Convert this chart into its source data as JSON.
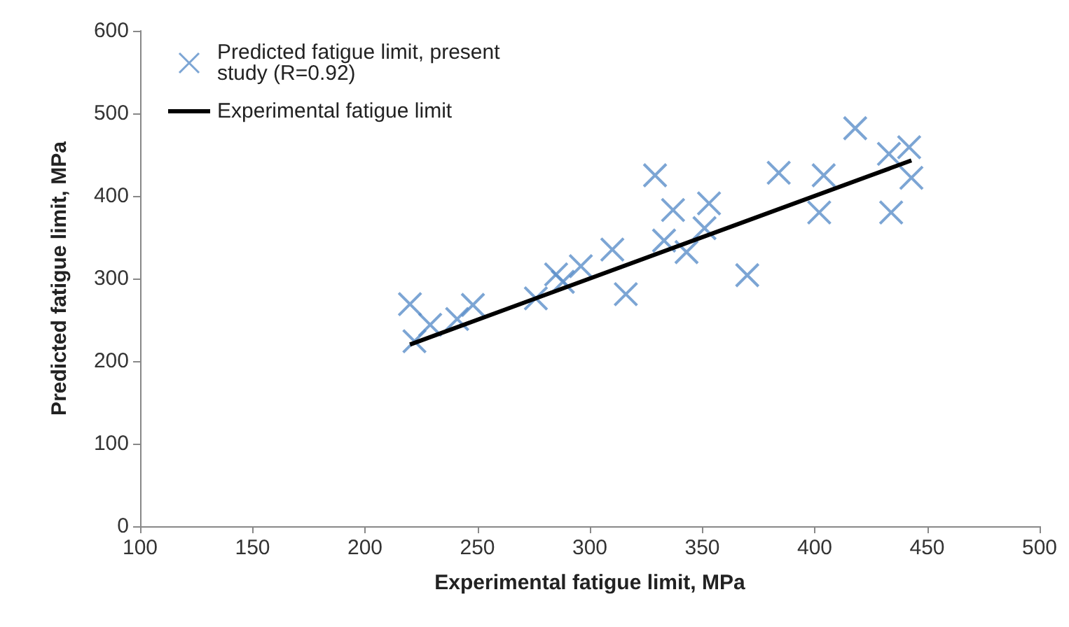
{
  "chart_data": {
    "type": "scatter",
    "xlabel": "Experimental fatigue limit, MPa",
    "ylabel": "Predicted fatigue limit, MPa",
    "xlim": [
      100,
      500
    ],
    "xticks": [
      100,
      150,
      200,
      250,
      300,
      350,
      400,
      450,
      500
    ],
    "ylim": [
      0,
      600
    ],
    "yticks": [
      0,
      100,
      200,
      300,
      400,
      500,
      600
    ],
    "grid": false,
    "legend": "top left",
    "series": [
      {
        "name": "Predicted fatigue limit, present study (R=0.92)",
        "marker": "cross",
        "color": "#5b8fc9",
        "x": [
          220,
          222,
          229,
          241,
          248,
          276,
          285,
          288,
          296,
          310,
          316,
          329,
          333,
          337,
          343,
          351,
          353,
          370,
          384,
          402,
          404,
          418,
          433,
          434,
          442,
          443
        ],
        "values": [
          269,
          224,
          244,
          251,
          268,
          276,
          305,
          296,
          315,
          335,
          281,
          425,
          346,
          383,
          332,
          361,
          391,
          304,
          428,
          380,
          425,
          482,
          451,
          380,
          459,
          422
        ]
      },
      {
        "name": "Experimental fatigue limit",
        "type": "line",
        "marker": "none",
        "color": "#000000",
        "line_style": "solid",
        "x": [
          220,
          443
        ],
        "values": [
          220,
          443
        ]
      }
    ]
  }
}
